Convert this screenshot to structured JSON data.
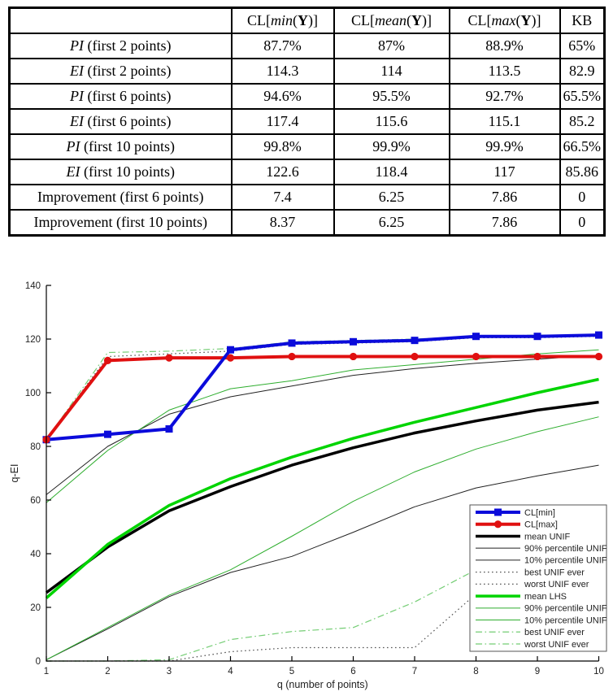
{
  "table": {
    "headers": [
      {
        "plain": ""
      },
      {
        "pre": "CL[",
        "func": "min",
        "open": "(",
        "arg": "Y",
        "close": ")]"
      },
      {
        "pre": "CL[",
        "func": "mean",
        "open": "(",
        "arg": "Y",
        "close": ")]"
      },
      {
        "pre": "CL[",
        "func": "max",
        "open": "(",
        "arg": "Y",
        "close": ")]"
      },
      {
        "plain": "KB"
      }
    ],
    "rows": [
      {
        "label_em": "PI",
        "label_rest": " (first 2 points)",
        "values": [
          "87.7%",
          "87%",
          "88.9%",
          "65%"
        ]
      },
      {
        "label_em": "EI",
        "label_rest": " (first 2 points)",
        "values": [
          "114.3",
          "114",
          "113.5",
          "82.9"
        ]
      },
      {
        "label_em": "PI",
        "label_rest": " (first 6 points)",
        "values": [
          "94.6%",
          "95.5%",
          "92.7%",
          "65.5%"
        ]
      },
      {
        "label_em": "EI",
        "label_rest": " (first 6 points)",
        "values": [
          "117.4",
          "115.6",
          "115.1",
          "85.2"
        ]
      },
      {
        "label_em": "PI",
        "label_rest": " (first 10 points)",
        "values": [
          "99.8%",
          "99.9%",
          "99.9%",
          "66.5%"
        ]
      },
      {
        "label_em": "EI",
        "label_rest": " (first 10 points)",
        "values": [
          "122.6",
          "118.4",
          "117",
          "85.86"
        ]
      },
      {
        "label_em": "",
        "label_rest": "Improvement (first 6 points)",
        "values": [
          "7.4",
          "6.25",
          "7.86",
          "0"
        ]
      },
      {
        "label_em": "",
        "label_rest": "Improvement (first 10 points)",
        "values": [
          "8.37",
          "6.25",
          "7.86",
          "0"
        ]
      }
    ]
  },
  "chart_data": {
    "type": "line",
    "title": "",
    "xlabel": "q (number of points)",
    "ylabel": "q-EI",
    "x": [
      1,
      2,
      3,
      4,
      5,
      6,
      7,
      8,
      9,
      10
    ],
    "xlim": [
      1,
      10
    ],
    "ylim": [
      0,
      140
    ],
    "xticks": [
      "1",
      "2",
      "3",
      "4",
      "5",
      "6",
      "7",
      "8",
      "9",
      "10"
    ],
    "yticks": [
      "0",
      "20",
      "40",
      "60",
      "80",
      "100",
      "120",
      "140"
    ],
    "grid": false,
    "legend_position": "lower-right",
    "series": [
      {
        "name": "CL[min]",
        "color": "#0b0bdb",
        "style": "solid",
        "width": 4,
        "marker": "square",
        "values": [
          82.5,
          84.5,
          86.5,
          116,
          118.5,
          119,
          119.5,
          121,
          121,
          121.5
        ]
      },
      {
        "name": "CL[max]",
        "color": "#e01010",
        "style": "solid",
        "width": 4,
        "marker": "circle",
        "values": [
          82.5,
          112,
          113,
          113,
          113.5,
          113.5,
          113.5,
          113.5,
          113.5,
          113.5
        ]
      },
      {
        "name": "mean UNIF",
        "color": "#000000",
        "style": "solid",
        "width": 3.5,
        "marker": "none",
        "values": [
          25.5,
          42.5,
          56,
          65,
          73,
          79.5,
          85,
          89.5,
          93.5,
          96.5
        ]
      },
      {
        "name": "90% percentile UNIF",
        "color": "#222222",
        "style": "solid",
        "width": 1,
        "marker": "none",
        "values": [
          62,
          80,
          92,
          98.5,
          102.5,
          106.5,
          109,
          111,
          112.5,
          114
        ]
      },
      {
        "name": "10% percentile UNIF",
        "color": "#222222",
        "style": "solid",
        "width": 1,
        "marker": "none",
        "values": [
          0.5,
          12,
          24,
          33,
          39,
          48,
          57.5,
          64.5,
          69,
          73
        ]
      },
      {
        "name": "best UNIF ever",
        "color": "#555555",
        "style": "dotted",
        "width": 1.2,
        "marker": "none",
        "values": [
          82.5,
          113.5,
          114.5,
          115.5,
          118,
          118.5,
          119,
          120.5,
          120.5,
          121
        ]
      },
      {
        "name": "worst UNIF ever",
        "color": "#555555",
        "style": "dotted",
        "width": 1.2,
        "marker": "none",
        "values": [
          0,
          0,
          0,
          3.5,
          5,
          5,
          5,
          25,
          35,
          44
        ]
      },
      {
        "name": "mean LHS",
        "color": "#00d400",
        "style": "solid",
        "width": 3.5,
        "marker": "none",
        "values": [
          23.5,
          43.5,
          58,
          68,
          76,
          83,
          89,
          94.5,
          100,
          105
        ]
      },
      {
        "name": "90% percentile UNIF",
        "color": "#2fae2f",
        "style": "solid",
        "width": 1,
        "marker": "none",
        "values": [
          59,
          78.5,
          93.5,
          101.5,
          104.5,
          108.5,
          110.5,
          112.5,
          114.5,
          116
        ]
      },
      {
        "name": "10% percentile UNIF",
        "color": "#2fae2f",
        "style": "solid",
        "width": 1,
        "marker": "none",
        "values": [
          0.5,
          12.5,
          24.5,
          34,
          46.5,
          59.5,
          70.5,
          79,
          85.5,
          91
        ]
      },
      {
        "name": "best UNIF ever",
        "color": "#74cd74",
        "style": "dashdot",
        "width": 1.2,
        "marker": "none",
        "values": [
          82.5,
          115,
          115.5,
          116.5,
          119,
          119.5,
          120,
          121,
          121.5,
          121.5
        ]
      },
      {
        "name": "worst UNIF ever",
        "color": "#74cd74",
        "style": "dashdot",
        "width": 1.2,
        "marker": "none",
        "values": [
          0,
          0,
          0.5,
          8,
          11,
          12.5,
          22,
          34,
          45,
          55
        ]
      }
    ]
  }
}
